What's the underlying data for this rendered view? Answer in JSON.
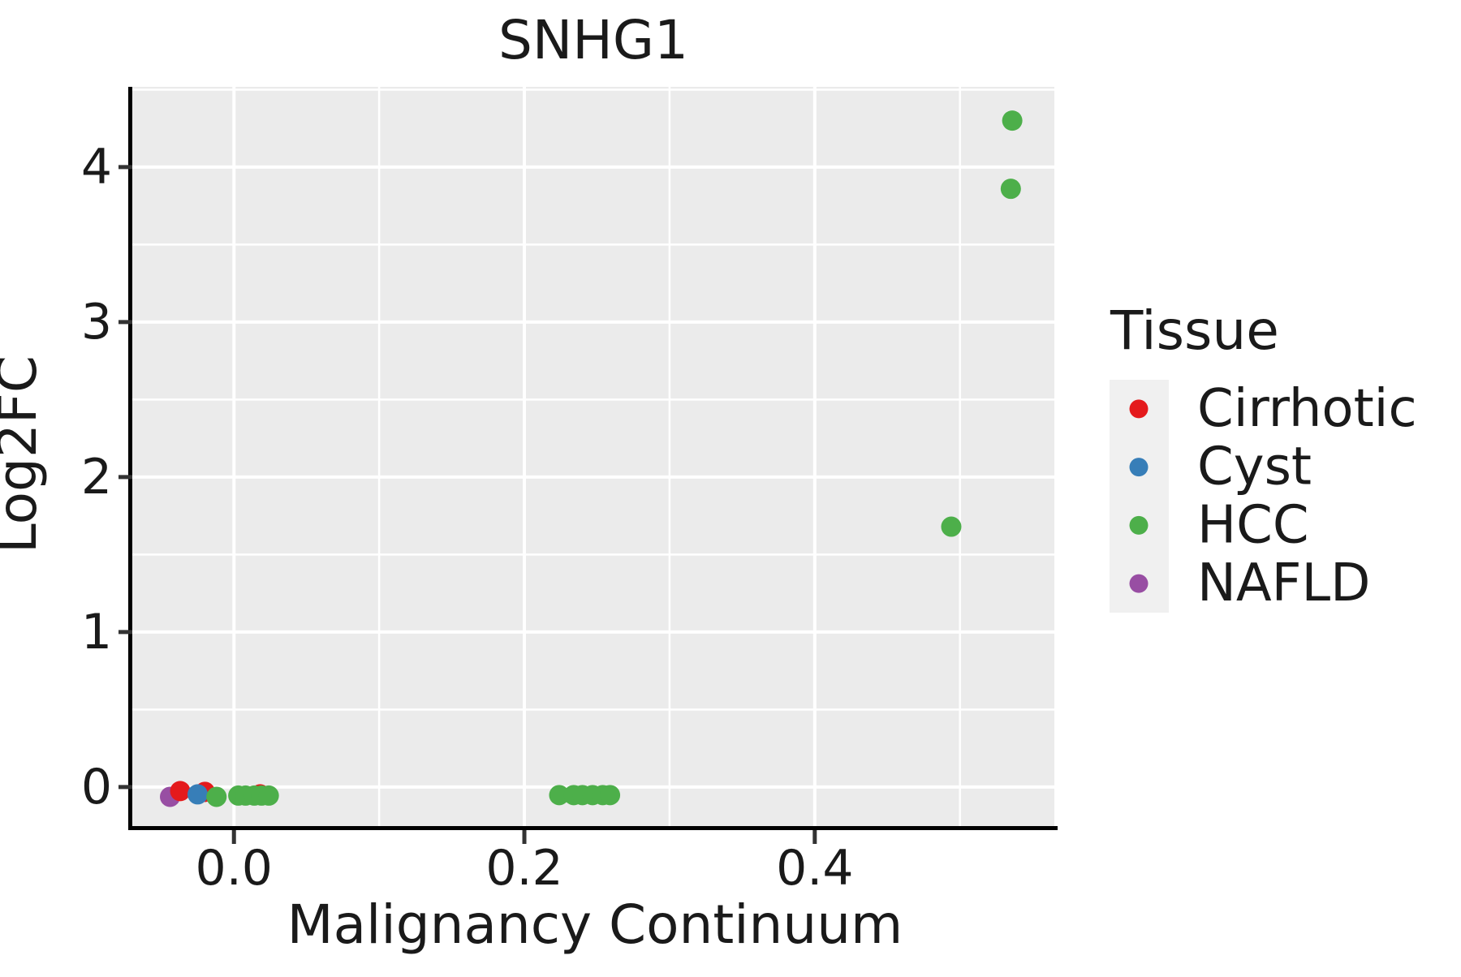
{
  "chart_data": {
    "type": "scatter",
    "title": "SNHG1",
    "xlabel": "Malignancy Continuum",
    "ylabel": "Log2FC",
    "xlim": [
      -0.07,
      0.565
    ],
    "ylim": [
      -0.257,
      4.518
    ],
    "grid": true,
    "x_major_ticks": [
      0.0,
      0.2,
      0.4
    ],
    "x_tick_labels": [
      "0.0",
      "0.2",
      "0.4"
    ],
    "x_minor_ticks": [
      0.1,
      0.3,
      0.5
    ],
    "y_major_ticks": [
      0,
      1,
      2,
      3,
      4
    ],
    "y_tick_labels": [
      "0",
      "1",
      "2",
      "3",
      "4"
    ],
    "y_minor_ticks": [
      0.5,
      1.5,
      2.5,
      3.5,
      4.5
    ],
    "legend": {
      "title": "Tissue",
      "position": "right",
      "entries": [
        {
          "label": "Cirrhotic",
          "color": "#E41A1C"
        },
        {
          "label": "Cyst",
          "color": "#377EB8"
        },
        {
          "label": "HCC",
          "color": "#4DAF4A"
        },
        {
          "label": "NAFLD",
          "color": "#984EA3"
        }
      ]
    },
    "series": [
      {
        "name": "NAFLD",
        "color": "#984EA3",
        "points": [
          [
            -0.044,
            -0.063
          ]
        ]
      },
      {
        "name": "Cirrhotic",
        "color": "#E41A1C",
        "points": [
          [
            -0.037,
            -0.026
          ],
          [
            -0.02,
            -0.031
          ],
          [
            0.018,
            -0.047
          ]
        ]
      },
      {
        "name": "Cyst",
        "color": "#377EB8",
        "points": [
          [
            -0.025,
            -0.047
          ]
        ]
      },
      {
        "name": "HCC",
        "color": "#4DAF4A",
        "points": [
          [
            -0.012,
            -0.063
          ],
          [
            0.003,
            -0.055
          ],
          [
            0.008,
            -0.055
          ],
          [
            0.014,
            -0.055
          ],
          [
            0.019,
            -0.055
          ],
          [
            0.024,
            -0.055
          ],
          [
            0.224,
            -0.052
          ],
          [
            0.234,
            -0.052
          ],
          [
            0.24,
            -0.052
          ],
          [
            0.247,
            -0.052
          ],
          [
            0.254,
            -0.052
          ],
          [
            0.259,
            -0.052
          ],
          [
            0.494,
            1.68
          ],
          [
            0.535,
            3.86
          ],
          [
            0.536,
            4.3
          ]
        ]
      }
    ]
  },
  "styles": {
    "panel_bg": "#EBEBEB",
    "legend_key_bg": "#F0F0F0",
    "grid_color": "#FFFFFF",
    "axis_line_color": "#000000",
    "tick_color": "#333333",
    "text_color": "#1A1A1A",
    "point_radius": 12.5,
    "legend_dot_radius": 11.5
  }
}
